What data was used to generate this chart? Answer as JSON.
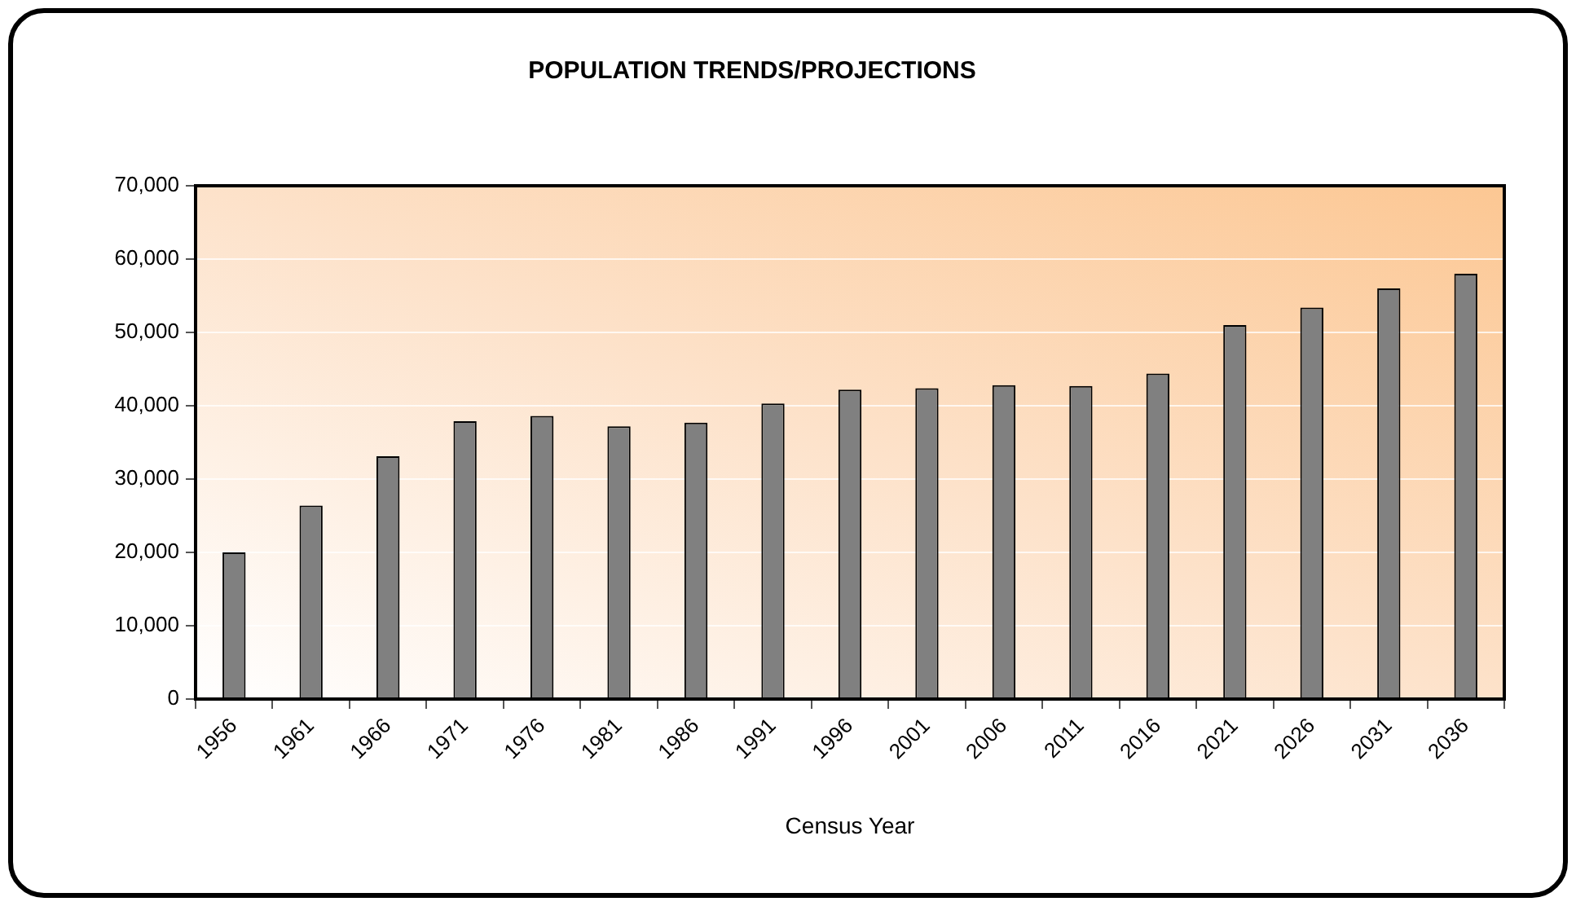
{
  "chart_data": {
    "type": "bar",
    "title": "POPULATION TRENDS/PROJECTIONS",
    "xlabel": "Census Year",
    "categories": [
      "1956",
      "1961",
      "1966",
      "1971",
      "1976",
      "1981",
      "1986",
      "1991",
      "1996",
      "2001",
      "2006",
      "2011",
      "2016",
      "2021",
      "2026",
      "2031",
      "2036"
    ],
    "values": [
      20000,
      26400,
      33100,
      37900,
      38600,
      37200,
      37700,
      40300,
      42200,
      42400,
      42800,
      42700,
      44400,
      51000,
      53400,
      56000,
      58000
    ],
    "color": "#808080",
    "ylim": [
      0,
      70000
    ],
    "yticks": [
      0,
      {
        "value": 10000,
        "label": "10,000"
      },
      {
        "value": 20000,
        "label": "20,000"
      },
      {
        "value": 30000,
        "label": "30,000"
      },
      {
        "value": 40000,
        "label": "40,000"
      },
      {
        "value": 50000,
        "label": "50,000"
      },
      {
        "value": 60000,
        "label": "60,000"
      },
      {
        "value": 70000,
        "label": "70,000"
      }
    ],
    "grid": "y"
  }
}
